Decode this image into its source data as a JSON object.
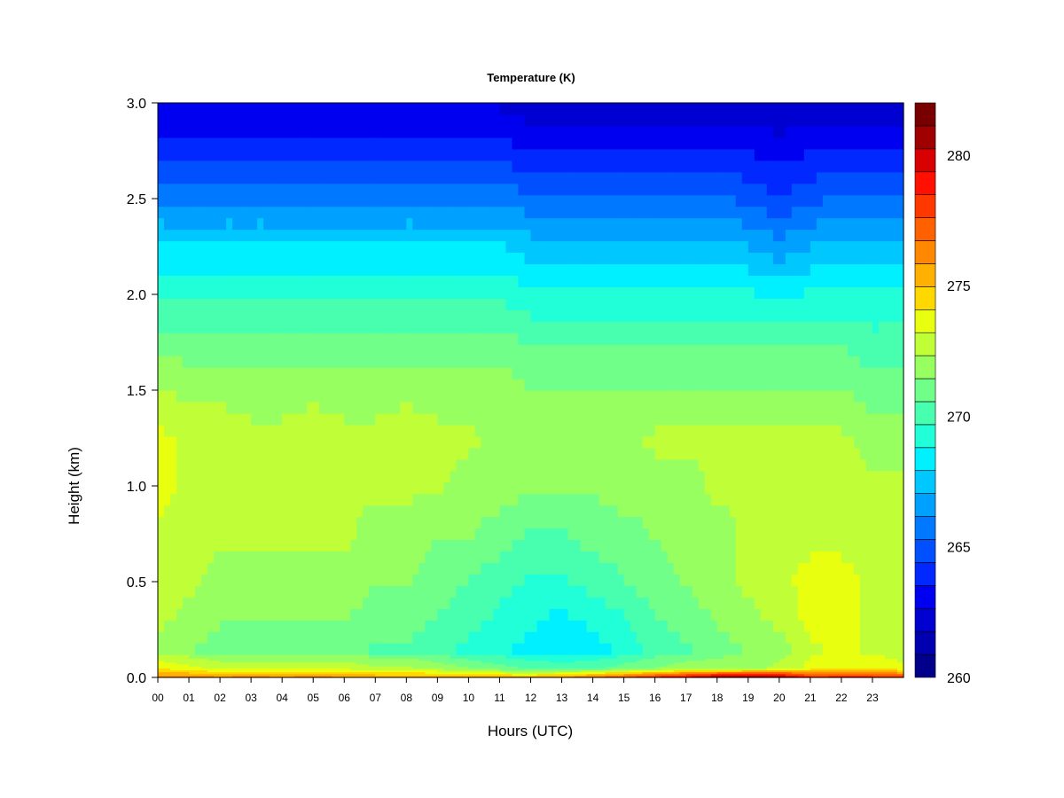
{
  "chart_data": {
    "type": "heatmap",
    "title": "Temperature (K)",
    "xlabel": "Hours (UTC)",
    "ylabel": "Height (km)",
    "xlim": [
      0,
      24
    ],
    "ylim": [
      0.0,
      3.0
    ],
    "x_ticks": [
      "00",
      "01",
      "02",
      "03",
      "04",
      "05",
      "06",
      "07",
      "08",
      "09",
      "10",
      "11",
      "12",
      "13",
      "14",
      "15",
      "16",
      "17",
      "18",
      "19",
      "20",
      "21",
      "22",
      "23"
    ],
    "y_ticks": [
      "0.0",
      "0.5",
      "1.0",
      "1.5",
      "2.0",
      "2.5",
      "3.0"
    ],
    "y_tick_values": [
      0.0,
      0.5,
      1.0,
      1.5,
      2.0,
      2.5,
      3.0
    ],
    "colorbar": {
      "range": [
        260,
        282
      ],
      "step": 1,
      "tick_labels": [
        "260",
        "265",
        "270",
        "275",
        "280"
      ],
      "tick_values": [
        260,
        265,
        270,
        275,
        280
      ],
      "colors": [
        "#00008b",
        "#0000b0",
        "#0000d0",
        "#0000f0",
        "#0028ff",
        "#0050ff",
        "#0078ff",
        "#00a0ff",
        "#00c8ff",
        "#00f0ff",
        "#20ffd8",
        "#48ffb0",
        "#70ff88",
        "#98ff60",
        "#c0ff38",
        "#e8ff10",
        "#ffd800",
        "#ffb000",
        "#ff8800",
        "#ff6000",
        "#ff3800",
        "#ff1000",
        "#d80000",
        "#a00000",
        "#780000"
      ]
    },
    "hours": [
      0,
      1,
      2,
      3,
      4,
      5,
      6,
      7,
      8,
      9,
      10,
      11,
      12,
      13,
      14,
      15,
      16,
      17,
      18,
      19,
      20,
      21,
      22,
      23,
      24
    ],
    "heights_km": [
      0.0,
      0.05,
      0.15,
      0.3,
      0.5,
      0.75,
      1.0,
      1.25,
      1.5,
      1.75,
      2.0,
      2.25,
      2.5,
      2.75,
      3.0
    ],
    "temperature_K": [
      [
        276.5,
        276.5,
        276.0,
        276.5,
        276.0,
        276.5,
        276.0,
        276.0,
        276.0,
        276.0,
        276.0,
        275.5,
        275.5,
        276.0,
        277.0,
        278.0,
        279.0,
        280.0,
        281.5,
        282.0,
        281.5,
        279.0,
        279.0,
        279.0,
        278.0
      ],
      [
        274.0,
        273.5,
        273.0,
        273.0,
        273.0,
        273.0,
        273.0,
        272.5,
        272.5,
        272.0,
        271.5,
        271.0,
        270.5,
        270.5,
        270.5,
        271.0,
        271.5,
        272.0,
        272.0,
        272.0,
        272.5,
        273.5,
        274.0,
        274.0,
        273.5
      ],
      [
        272.0,
        271.5,
        271.0,
        271.0,
        271.0,
        271.0,
        271.0,
        270.5,
        270.5,
        270.0,
        269.5,
        269.0,
        268.5,
        268.0,
        268.5,
        269.0,
        270.0,
        270.5,
        271.0,
        271.5,
        272.0,
        273.0,
        273.5,
        273.0,
        272.5
      ],
      [
        272.5,
        272.0,
        271.5,
        271.5,
        271.5,
        271.5,
        271.5,
        271.0,
        271.0,
        270.5,
        270.0,
        269.5,
        269.0,
        268.5,
        269.0,
        269.5,
        270.5,
        271.0,
        271.5,
        272.0,
        272.5,
        273.5,
        273.5,
        273.0,
        272.5
      ],
      [
        273.0,
        272.5,
        272.0,
        272.0,
        272.0,
        272.0,
        272.0,
        271.5,
        271.5,
        271.0,
        270.5,
        270.0,
        269.5,
        269.5,
        270.0,
        270.5,
        271.0,
        271.5,
        272.0,
        272.5,
        273.0,
        273.5,
        273.5,
        273.0,
        272.5
      ],
      [
        273.0,
        273.0,
        272.5,
        272.5,
        272.5,
        272.5,
        272.5,
        272.0,
        272.0,
        271.5,
        271.5,
        271.0,
        270.5,
        270.5,
        271.0,
        271.0,
        271.5,
        272.0,
        272.0,
        272.5,
        272.5,
        273.0,
        273.0,
        272.5,
        272.5
      ],
      [
        273.5,
        273.0,
        273.0,
        272.5,
        272.5,
        273.0,
        272.5,
        272.5,
        272.5,
        272.5,
        272.0,
        272.0,
        271.5,
        271.5,
        271.5,
        272.0,
        272.0,
        272.0,
        272.5,
        272.5,
        272.5,
        273.0,
        272.5,
        272.5,
        272.5
      ],
      [
        273.5,
        273.0,
        273.0,
        272.5,
        272.5,
        273.0,
        272.5,
        272.5,
        273.0,
        272.5,
        272.5,
        272.0,
        272.0,
        272.0,
        272.0,
        272.0,
        272.5,
        272.5,
        272.5,
        272.5,
        272.5,
        272.5,
        272.5,
        272.0,
        272.0
      ],
      [
        272.5,
        272.0,
        272.0,
        272.0,
        272.0,
        272.0,
        272.0,
        272.0,
        272.0,
        272.0,
        272.0,
        272.0,
        271.5,
        271.5,
        271.5,
        271.5,
        271.5,
        271.5,
        271.5,
        271.5,
        271.5,
        271.5,
        271.5,
        271.0,
        271.0
      ],
      [
        271.0,
        271.0,
        271.0,
        271.0,
        271.0,
        271.0,
        271.0,
        271.0,
        271.0,
        271.0,
        271.0,
        271.0,
        270.5,
        270.5,
        270.5,
        270.5,
        270.5,
        270.5,
        270.5,
        270.5,
        270.5,
        270.5,
        270.5,
        270.0,
        270.0
      ],
      [
        269.5,
        269.5,
        269.5,
        269.5,
        269.5,
        269.5,
        269.5,
        269.5,
        269.5,
        269.5,
        269.5,
        269.5,
        269.0,
        269.0,
        269.0,
        269.0,
        269.0,
        269.0,
        269.0,
        269.0,
        268.5,
        269.0,
        269.0,
        269.0,
        269.0
      ],
      [
        268.0,
        268.0,
        268.0,
        268.0,
        268.0,
        268.0,
        268.0,
        268.0,
        268.0,
        268.0,
        268.0,
        268.0,
        267.5,
        267.5,
        267.5,
        267.5,
        267.5,
        267.5,
        267.5,
        267.0,
        266.5,
        267.0,
        267.5,
        267.5,
        267.5
      ],
      [
        266.0,
        266.0,
        266.0,
        266.0,
        266.0,
        266.0,
        266.0,
        266.0,
        266.0,
        266.0,
        266.0,
        266.0,
        265.5,
        265.5,
        265.5,
        265.5,
        265.5,
        265.5,
        265.5,
        265.0,
        264.5,
        265.0,
        265.5,
        265.5,
        265.5
      ],
      [
        264.0,
        264.0,
        264.0,
        264.0,
        264.0,
        264.0,
        264.0,
        264.0,
        264.0,
        264.0,
        264.0,
        264.0,
        263.5,
        263.5,
        263.5,
        263.5,
        263.5,
        263.5,
        263.5,
        263.5,
        263.0,
        263.5,
        263.5,
        263.5,
        263.5
      ],
      [
        262.5,
        262.5,
        262.5,
        262.5,
        262.5,
        262.5,
        262.5,
        262.5,
        262.5,
        262.5,
        262.5,
        262.5,
        262.0,
        262.0,
        262.0,
        262.0,
        262.0,
        262.0,
        262.0,
        262.0,
        262.0,
        262.0,
        262.0,
        262.0,
        262.0
      ]
    ]
  }
}
